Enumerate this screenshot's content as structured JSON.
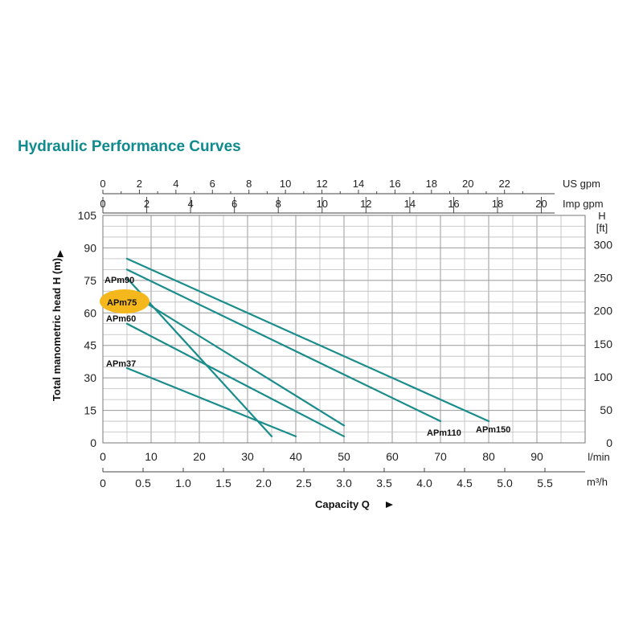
{
  "title": "Hydraulic Performance Curves",
  "colors": {
    "title": "#0f8a8f",
    "curve": "#1a8c8c",
    "highlight": "#f5b81c"
  },
  "chart_data": {
    "type": "line",
    "xlabel": "Capacity Q",
    "x_unit": "l/min",
    "xlim": [
      0,
      100
    ],
    "x_ticks": [
      "0",
      "10",
      "20",
      "30",
      "40",
      "50",
      "60",
      "70",
      "80",
      "90"
    ],
    "ylabel": "Total manometric head H (m)",
    "ylim": [
      0,
      105
    ],
    "y_ticks": [
      "0",
      "15",
      "30",
      "45",
      "60",
      "75",
      "90",
      "105"
    ],
    "y_right_label": "H",
    "y_right_unit": "[ft]",
    "y_right_ticks": [
      {
        "label": "0",
        "m": 0
      },
      {
        "label": "50",
        "m": 15.24
      },
      {
        "label": "100",
        "m": 30.48
      },
      {
        "label": "150",
        "m": 45.72
      },
      {
        "label": "200",
        "m": 60.96
      },
      {
        "label": "250",
        "m": 76.2
      },
      {
        "label": "300",
        "m": 91.44
      }
    ],
    "m3h_unit": "m³/h",
    "m3h_ticks": [
      "0",
      "0.5",
      "1.0",
      "1.5",
      "2.0",
      "2.5",
      "3.0",
      "3.5",
      "4.0",
      "4.5",
      "5.0",
      "5.5"
    ],
    "us_gpm_unit": "US gpm",
    "us_gpm_ticks": [
      "0",
      "2",
      "4",
      "6",
      "8",
      "10",
      "12",
      "14",
      "16",
      "18",
      "20",
      "22"
    ],
    "imp_gpm_unit": "Imp gpm",
    "imp_gpm_ticks": [
      "0",
      "2",
      "4",
      "6",
      "8",
      "10",
      "12",
      "14",
      "16",
      "18",
      "20"
    ],
    "highlighted_series": "APm75",
    "grid": true,
    "series": [
      {
        "name": "APm37",
        "x": [
          5,
          40
        ],
        "y": [
          34.5,
          3
        ]
      },
      {
        "name": "APm60",
        "x": [
          5,
          50
        ],
        "y": [
          55,
          3
        ]
      },
      {
        "name": "APm75",
        "x": [
          5,
          35
        ],
        "y": [
          76,
          3
        ]
      },
      {
        "name": "APm90",
        "x": [
          5,
          50
        ],
        "y": [
          70,
          8
        ]
      },
      {
        "name": "APm110",
        "x": [
          5,
          70
        ],
        "y": [
          80,
          10
        ]
      },
      {
        "name": "APm150",
        "x": [
          5,
          80
        ],
        "y": [
          85,
          10
        ]
      }
    ]
  }
}
